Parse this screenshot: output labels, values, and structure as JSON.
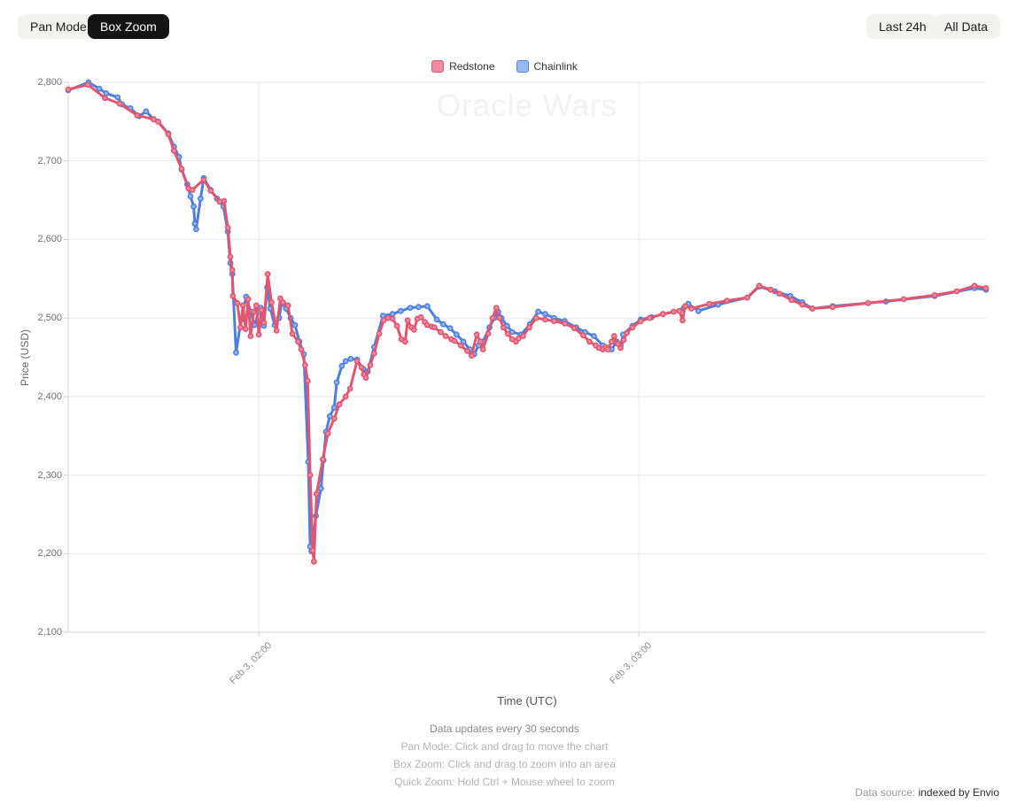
{
  "toolbar": {
    "pan_mode": "Pan Mode",
    "box_zoom": "Box Zoom",
    "last_24h": "Last 24h",
    "all_data": "All Data"
  },
  "footer": {
    "update_note": "Data updates every 30 seconds",
    "hint_pan": "Pan Mode: Click and drag to move the chart",
    "hint_box": "Box Zoom: Click and drag to zoom into an area",
    "hint_quick": "Quick Zoom: Hold Ctrl + Mouse wheel to zoom",
    "datasource_label": "Data source:",
    "datasource_value": "indexed by Envio"
  },
  "chart_data": {
    "type": "line",
    "title": "Oracle Wars",
    "xlabel": "Time (UTC)",
    "ylabel": "Price (USD)",
    "x_unit": "minutes since Feb 3 00:00 UTC",
    "xlim": [
      89.9,
      234.8
    ],
    "ylim": [
      2100,
      2800
    ],
    "yticks": [
      2100,
      2200,
      2300,
      2400,
      2500,
      2600,
      2700,
      2800
    ],
    "xticks": [
      {
        "value": 120,
        "label": "Feb 3, 02:00"
      },
      {
        "value": 180,
        "label": "Feb 3, 03:00"
      }
    ],
    "grid": true,
    "legend_position": "top",
    "series": [
      {
        "name": "Chainlink",
        "color": "#4e7fdc",
        "marker_fill": "#92b4ec",
        "legend_fill": "#97b7ee",
        "points": [
          [
            89.9,
            2790
          ],
          [
            93.1,
            2800
          ],
          [
            94.8,
            2792
          ],
          [
            95.9,
            2786
          ],
          [
            97.7,
            2781
          ],
          [
            98.4,
            2772
          ],
          [
            99.7,
            2767
          ],
          [
            101.1,
            2757
          ],
          [
            102.2,
            2763
          ],
          [
            103.4,
            2753
          ],
          [
            104.1,
            2750
          ],
          [
            105.7,
            2735
          ],
          [
            106.6,
            2718
          ],
          [
            107.4,
            2705
          ],
          [
            107.8,
            2689
          ],
          [
            108.7,
            2670
          ],
          [
            109.2,
            2655
          ],
          [
            109.7,
            2642
          ],
          [
            109.9,
            2620
          ],
          [
            110.1,
            2613
          ],
          [
            110.8,
            2652
          ],
          [
            111.3,
            2678
          ],
          [
            112.4,
            2663
          ],
          [
            113.4,
            2652
          ],
          [
            114.4,
            2642
          ],
          [
            115.1,
            2610
          ],
          [
            115.5,
            2570
          ],
          [
            115.8,
            2556
          ],
          [
            116.4,
            2456
          ],
          [
            117.2,
            2498
          ],
          [
            118.0,
            2527
          ],
          [
            118.7,
            2508
          ],
          [
            119.3,
            2491
          ],
          [
            120.0,
            2508
          ],
          [
            120.3,
            2513
          ],
          [
            120.8,
            2490
          ],
          [
            121.3,
            2539
          ],
          [
            121.8,
            2512
          ],
          [
            122.5,
            2491
          ],
          [
            123.2,
            2500
          ],
          [
            123.6,
            2519
          ],
          [
            124.3,
            2512
          ],
          [
            125.0,
            2500
          ],
          [
            125.7,
            2491
          ],
          [
            126.4,
            2470
          ],
          [
            127.1,
            2454
          ],
          [
            127.8,
            2317
          ],
          [
            128.1,
            2209
          ],
          [
            128.3,
            2203
          ],
          [
            129.0,
            2248
          ],
          [
            129.8,
            2283
          ],
          [
            130.2,
            2319
          ],
          [
            130.6,
            2355
          ],
          [
            131.2,
            2375
          ],
          [
            131.9,
            2386
          ],
          [
            132.3,
            2418
          ],
          [
            133.1,
            2439
          ],
          [
            133.7,
            2445
          ],
          [
            134.5,
            2448
          ],
          [
            135.5,
            2447
          ],
          [
            136.5,
            2435
          ],
          [
            137.2,
            2432
          ],
          [
            138.2,
            2463
          ],
          [
            139.6,
            2503
          ],
          [
            141.1,
            2505
          ],
          [
            142.4,
            2509
          ],
          [
            143.9,
            2513
          ],
          [
            145.2,
            2514
          ],
          [
            146.6,
            2515
          ],
          [
            148.1,
            2498
          ],
          [
            149.1,
            2492
          ],
          [
            150.2,
            2487
          ],
          [
            151.2,
            2479
          ],
          [
            152.3,
            2470
          ],
          [
            153.3,
            2460
          ],
          [
            154.0,
            2454
          ],
          [
            154.7,
            2465
          ],
          [
            155.4,
            2470
          ],
          [
            156.4,
            2488
          ],
          [
            157.2,
            2500
          ],
          [
            157.8,
            2508
          ],
          [
            158.3,
            2500
          ],
          [
            159.2,
            2490
          ],
          [
            160.0,
            2482
          ],
          [
            161.4,
            2479
          ],
          [
            162.8,
            2492
          ],
          [
            164.1,
            2508
          ],
          [
            165.2,
            2505
          ],
          [
            166.6,
            2500
          ],
          [
            168.3,
            2496
          ],
          [
            170.1,
            2488
          ],
          [
            171.5,
            2482
          ],
          [
            172.9,
            2477
          ],
          [
            174.3,
            2465
          ],
          [
            175.7,
            2460
          ],
          [
            176.5,
            2470
          ],
          [
            177.1,
            2465
          ],
          [
            177.5,
            2479
          ],
          [
            179.0,
            2490
          ],
          [
            180.3,
            2498
          ],
          [
            182.0,
            2501
          ],
          [
            183.8,
            2505
          ],
          [
            186.4,
            2509
          ],
          [
            187.1,
            2513
          ],
          [
            187.8,
            2518
          ],
          [
            189.4,
            2509
          ],
          [
            192.5,
            2517
          ],
          [
            197.1,
            2526
          ],
          [
            199.0,
            2540
          ],
          [
            201.5,
            2534
          ],
          [
            203.9,
            2528
          ],
          [
            205.8,
            2520
          ],
          [
            207.4,
            2512
          ],
          [
            210.6,
            2515
          ],
          [
            219.0,
            2521
          ],
          [
            226.7,
            2528
          ],
          [
            233.0,
            2538
          ],
          [
            234.8,
            2536
          ]
        ]
      },
      {
        "name": "Redstone",
        "color": "#e15570",
        "marker_fill": "#ec8ba0",
        "legend_fill": "#f08ca2",
        "points": [
          [
            89.9,
            2791
          ],
          [
            93.0,
            2797
          ],
          [
            95.7,
            2780
          ],
          [
            98.0,
            2773
          ],
          [
            100.8,
            2758
          ],
          [
            103.4,
            2753
          ],
          [
            104.1,
            2750
          ],
          [
            105.7,
            2734
          ],
          [
            106.6,
            2713
          ],
          [
            107.8,
            2690
          ],
          [
            108.9,
            2665
          ],
          [
            109.5,
            2663
          ],
          [
            111.3,
            2676
          ],
          [
            112.4,
            2662
          ],
          [
            113.8,
            2648
          ],
          [
            114.5,
            2649
          ],
          [
            115.1,
            2615
          ],
          [
            115.5,
            2578
          ],
          [
            115.8,
            2561
          ],
          [
            115.9,
            2528
          ],
          [
            116.6,
            2519
          ],
          [
            117.1,
            2488
          ],
          [
            117.5,
            2516
          ],
          [
            117.9,
            2486
          ],
          [
            118.3,
            2524
          ],
          [
            118.7,
            2477
          ],
          [
            119.2,
            2508
          ],
          [
            119.6,
            2516
          ],
          [
            120.0,
            2479
          ],
          [
            120.4,
            2510
          ],
          [
            120.8,
            2494
          ],
          [
            121.4,
            2556
          ],
          [
            122.0,
            2520
          ],
          [
            122.8,
            2484
          ],
          [
            123.4,
            2525
          ],
          [
            123.8,
            2520
          ],
          [
            124.6,
            2516
          ],
          [
            125.3,
            2480
          ],
          [
            126.2,
            2470
          ],
          [
            126.7,
            2460
          ],
          [
            127.3,
            2440
          ],
          [
            127.7,
            2420
          ],
          [
            128.1,
            2300
          ],
          [
            128.5,
            2204
          ],
          [
            128.7,
            2190
          ],
          [
            129.1,
            2276
          ],
          [
            130.1,
            2320
          ],
          [
            130.9,
            2353
          ],
          [
            131.9,
            2372
          ],
          [
            132.7,
            2390
          ],
          [
            133.7,
            2400
          ],
          [
            134.4,
            2410
          ],
          [
            135.5,
            2445
          ],
          [
            136.2,
            2437
          ],
          [
            136.6,
            2428
          ],
          [
            136.9,
            2424
          ],
          [
            137.6,
            2440
          ],
          [
            138.2,
            2455
          ],
          [
            139.0,
            2480
          ],
          [
            139.7,
            2497
          ],
          [
            140.4,
            2500
          ],
          [
            141.1,
            2499
          ],
          [
            141.8,
            2490
          ],
          [
            142.5,
            2473
          ],
          [
            143.1,
            2470
          ],
          [
            143.5,
            2497
          ],
          [
            144.1,
            2488
          ],
          [
            144.5,
            2485
          ],
          [
            145.0,
            2499
          ],
          [
            145.6,
            2501
          ],
          [
            146.2,
            2495
          ],
          [
            146.6,
            2491
          ],
          [
            147.3,
            2489
          ],
          [
            147.7,
            2488
          ],
          [
            148.7,
            2482
          ],
          [
            149.5,
            2477
          ],
          [
            150.4,
            2473
          ],
          [
            150.9,
            2471
          ],
          [
            151.9,
            2465
          ],
          [
            152.9,
            2458
          ],
          [
            153.6,
            2452
          ],
          [
            154.4,
            2479
          ],
          [
            155.0,
            2470
          ],
          [
            155.4,
            2460
          ],
          [
            156.2,
            2480
          ],
          [
            156.9,
            2500
          ],
          [
            157.5,
            2513
          ],
          [
            158.0,
            2500
          ],
          [
            158.6,
            2488
          ],
          [
            159.3,
            2480
          ],
          [
            160.0,
            2473
          ],
          [
            160.6,
            2470
          ],
          [
            161.0,
            2474
          ],
          [
            161.7,
            2477
          ],
          [
            162.7,
            2488
          ],
          [
            163.8,
            2500
          ],
          [
            165.2,
            2498
          ],
          [
            166.6,
            2496
          ],
          [
            168.3,
            2493
          ],
          [
            169.8,
            2487
          ],
          [
            171.2,
            2478
          ],
          [
            172.2,
            2470
          ],
          [
            173.2,
            2465
          ],
          [
            173.7,
            2462
          ],
          [
            174.3,
            2460
          ],
          [
            174.8,
            2463
          ],
          [
            175.1,
            2460
          ],
          [
            175.7,
            2470
          ],
          [
            176.1,
            2477
          ],
          [
            176.7,
            2467
          ],
          [
            177.1,
            2462
          ],
          [
            177.6,
            2472
          ],
          [
            178.1,
            2481
          ],
          [
            179.0,
            2488
          ],
          [
            180.3,
            2496
          ],
          [
            181.7,
            2500
          ],
          [
            183.8,
            2505
          ],
          [
            185.5,
            2508
          ],
          [
            186.4,
            2509
          ],
          [
            186.9,
            2497
          ],
          [
            187.3,
            2515
          ],
          [
            188.3,
            2512
          ],
          [
            191.1,
            2518
          ],
          [
            193.9,
            2522
          ],
          [
            197.1,
            2526
          ],
          [
            199.0,
            2541
          ],
          [
            200.8,
            2536
          ],
          [
            202.2,
            2531
          ],
          [
            204.1,
            2523
          ],
          [
            205.8,
            2517
          ],
          [
            207.4,
            2512
          ],
          [
            210.6,
            2514
          ],
          [
            216.2,
            2519
          ],
          [
            221.8,
            2524
          ],
          [
            226.7,
            2529
          ],
          [
            230.2,
            2534
          ],
          [
            233.0,
            2541
          ],
          [
            234.8,
            2538
          ]
        ]
      }
    ]
  }
}
